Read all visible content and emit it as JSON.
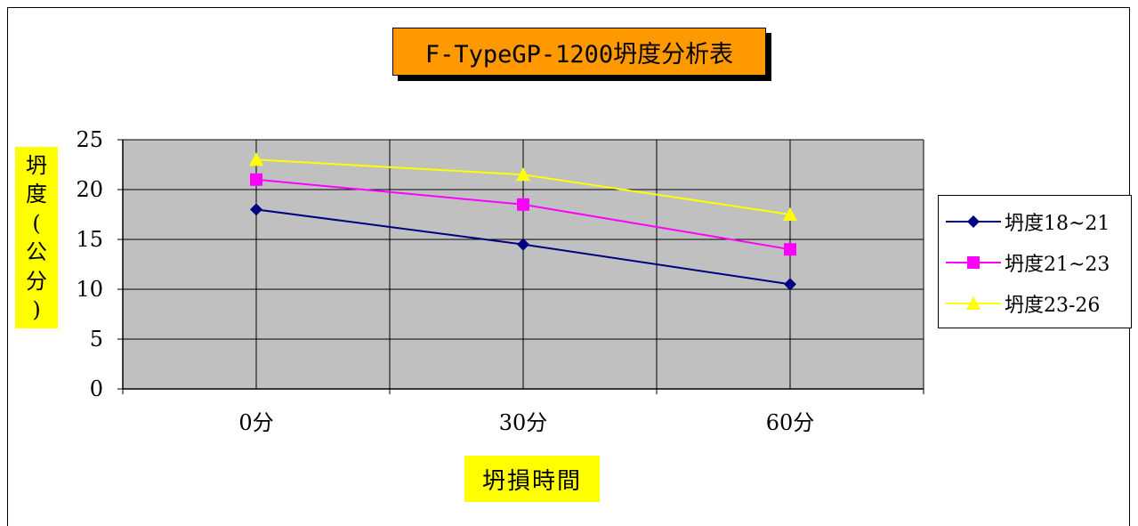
{
  "chart_data": {
    "type": "line",
    "title": "F-TypeGP-1200坍度分析表",
    "xlabel": "坍損時間",
    "ylabel_chars": [
      "坍",
      "度",
      "(",
      "公",
      "分",
      ")"
    ],
    "categories": [
      "0分",
      "30分",
      "60分"
    ],
    "ylim": [
      0,
      25
    ],
    "yticks": [
      "0",
      "5",
      "10",
      "15",
      "20",
      "25"
    ],
    "grid": true,
    "legend_position": "right",
    "series": [
      {
        "name": "坍度18~21",
        "values": [
          18,
          14.5,
          10.5
        ],
        "color": "#000080",
        "marker": "diamond"
      },
      {
        "name": "坍度21~23",
        "values": [
          21,
          18.5,
          14
        ],
        "color": "#ff00ff",
        "marker": "square"
      },
      {
        "name": "坍度23-26",
        "values": [
          23,
          21.5,
          17.5
        ],
        "color": "#ffff00",
        "marker": "triangle"
      }
    ],
    "colors": {
      "plot_background": "#c0c0c0",
      "title_background": "#ff9900",
      "label_background": "#ffff00"
    }
  }
}
